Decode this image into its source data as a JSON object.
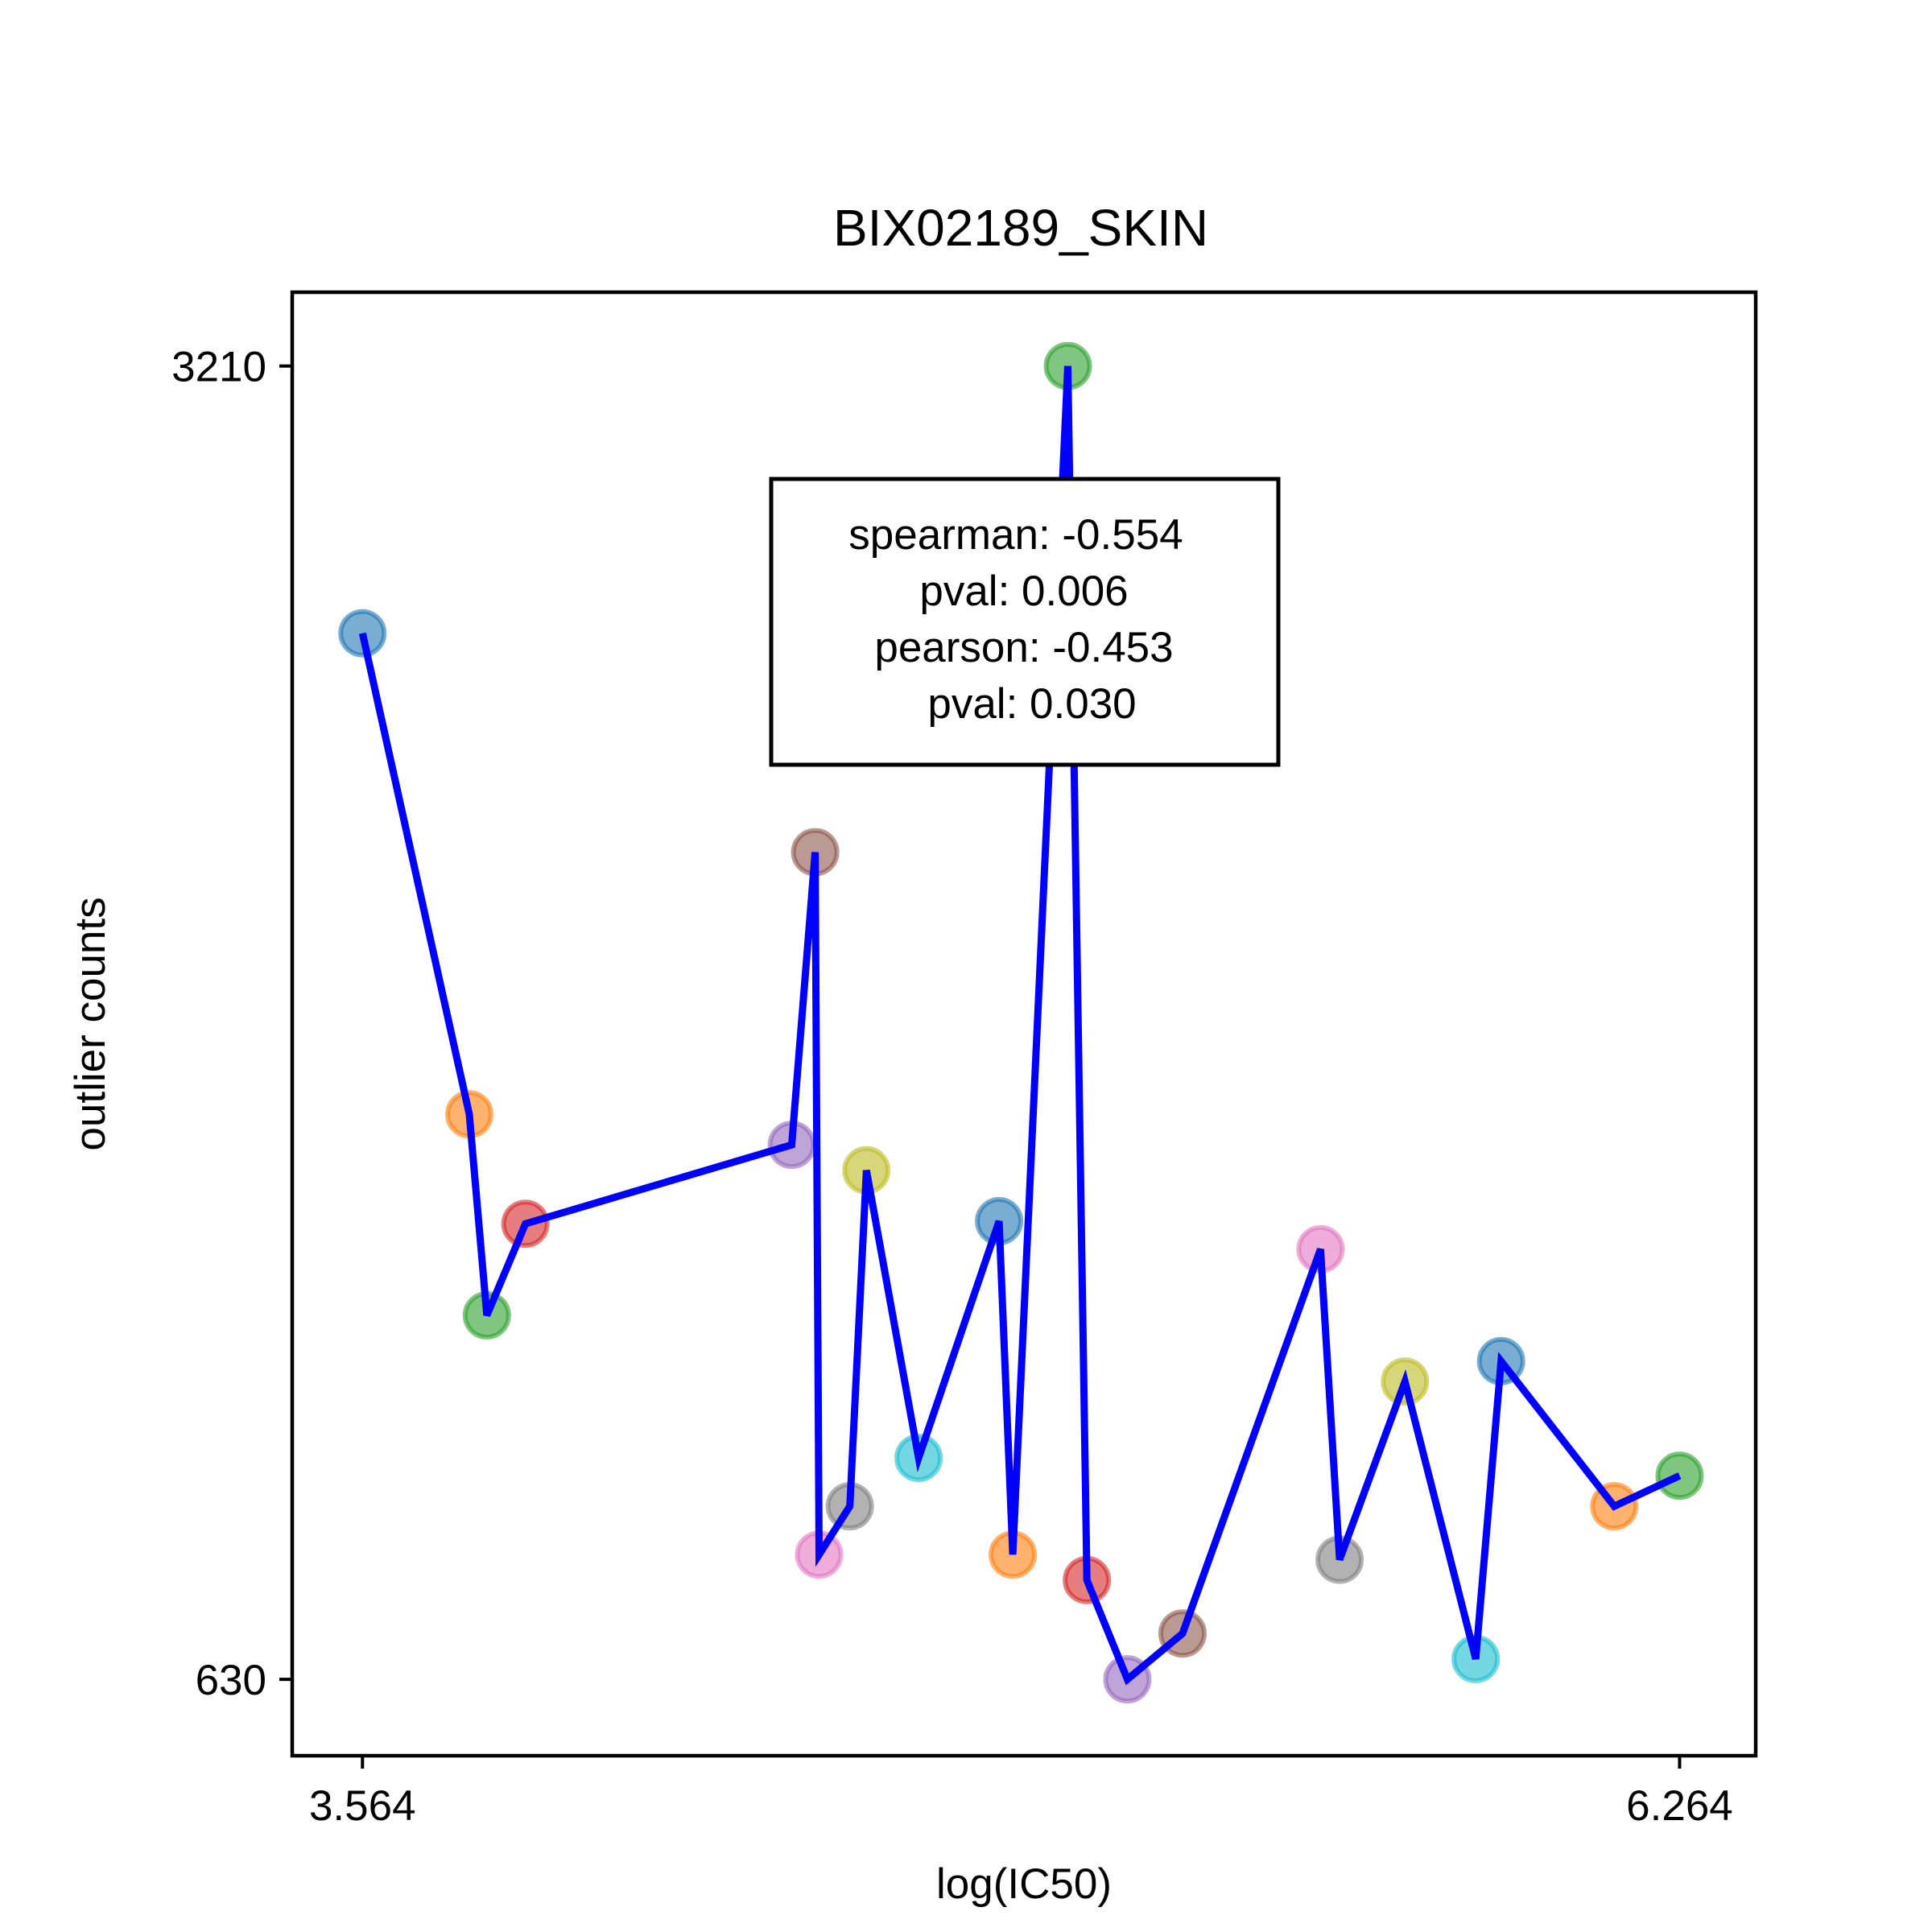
{
  "chart_data": {
    "type": "scatter",
    "title": "BIX02189_SKIN",
    "xlabel": "log(IC50)",
    "ylabel": "outlier counts",
    "xlim": [
      3.42,
      6.42
    ],
    "ylim": [
      480,
      3355
    ],
    "x_ticks": [
      3.564,
      6.264
    ],
    "y_ticks": [
      630,
      3210
    ],
    "x_tick_labels": [
      "3.564",
      "6.264"
    ],
    "y_tick_labels": [
      "630",
      "3210"
    ],
    "grid": false,
    "legend": "none",
    "line_color": "#0000ff",
    "annotation": {
      "lines": [
        "spearman: -0.554",
        "pval: 0.006",
        "pearson: -0.453",
        "pval: 0.030"
      ]
    },
    "points": [
      {
        "x": 3.564,
        "y": 2685,
        "color": "#1f77b4"
      },
      {
        "x": 3.783,
        "y": 1740,
        "color": "#ff7f0e"
      },
      {
        "x": 3.819,
        "y": 1345,
        "color": "#2ca02c"
      },
      {
        "x": 3.898,
        "y": 1525,
        "color": "#d62728"
      },
      {
        "x": 4.444,
        "y": 1680,
        "color": "#9467bd"
      },
      {
        "x": 4.492,
        "y": 2255,
        "color": "#8c564b"
      },
      {
        "x": 4.5,
        "y": 875,
        "color": "#e377c2"
      },
      {
        "x": 4.563,
        "y": 970,
        "color": "#7f7f7f"
      },
      {
        "x": 4.597,
        "y": 1630,
        "color": "#bcbd22"
      },
      {
        "x": 4.704,
        "y": 1065,
        "color": "#17becf"
      },
      {
        "x": 4.869,
        "y": 1530,
        "color": "#1f77b4"
      },
      {
        "x": 4.897,
        "y": 875,
        "color": "#ff7f0e"
      },
      {
        "x": 5.01,
        "y": 3210,
        "color": "#2ca02c"
      },
      {
        "x": 5.049,
        "y": 825,
        "color": "#d62728"
      },
      {
        "x": 5.132,
        "y": 630,
        "color": "#9467bd"
      },
      {
        "x": 5.245,
        "y": 720,
        "color": "#8c564b"
      },
      {
        "x": 5.528,
        "y": 1475,
        "color": "#e377c2"
      },
      {
        "x": 5.567,
        "y": 865,
        "color": "#7f7f7f"
      },
      {
        "x": 5.701,
        "y": 1215,
        "color": "#bcbd22"
      },
      {
        "x": 5.846,
        "y": 670,
        "color": "#17becf"
      },
      {
        "x": 5.898,
        "y": 1255,
        "color": "#1f77b4"
      },
      {
        "x": 6.13,
        "y": 970,
        "color": "#ff7f0e"
      },
      {
        "x": 6.264,
        "y": 1030,
        "color": "#2ca02c"
      }
    ]
  }
}
